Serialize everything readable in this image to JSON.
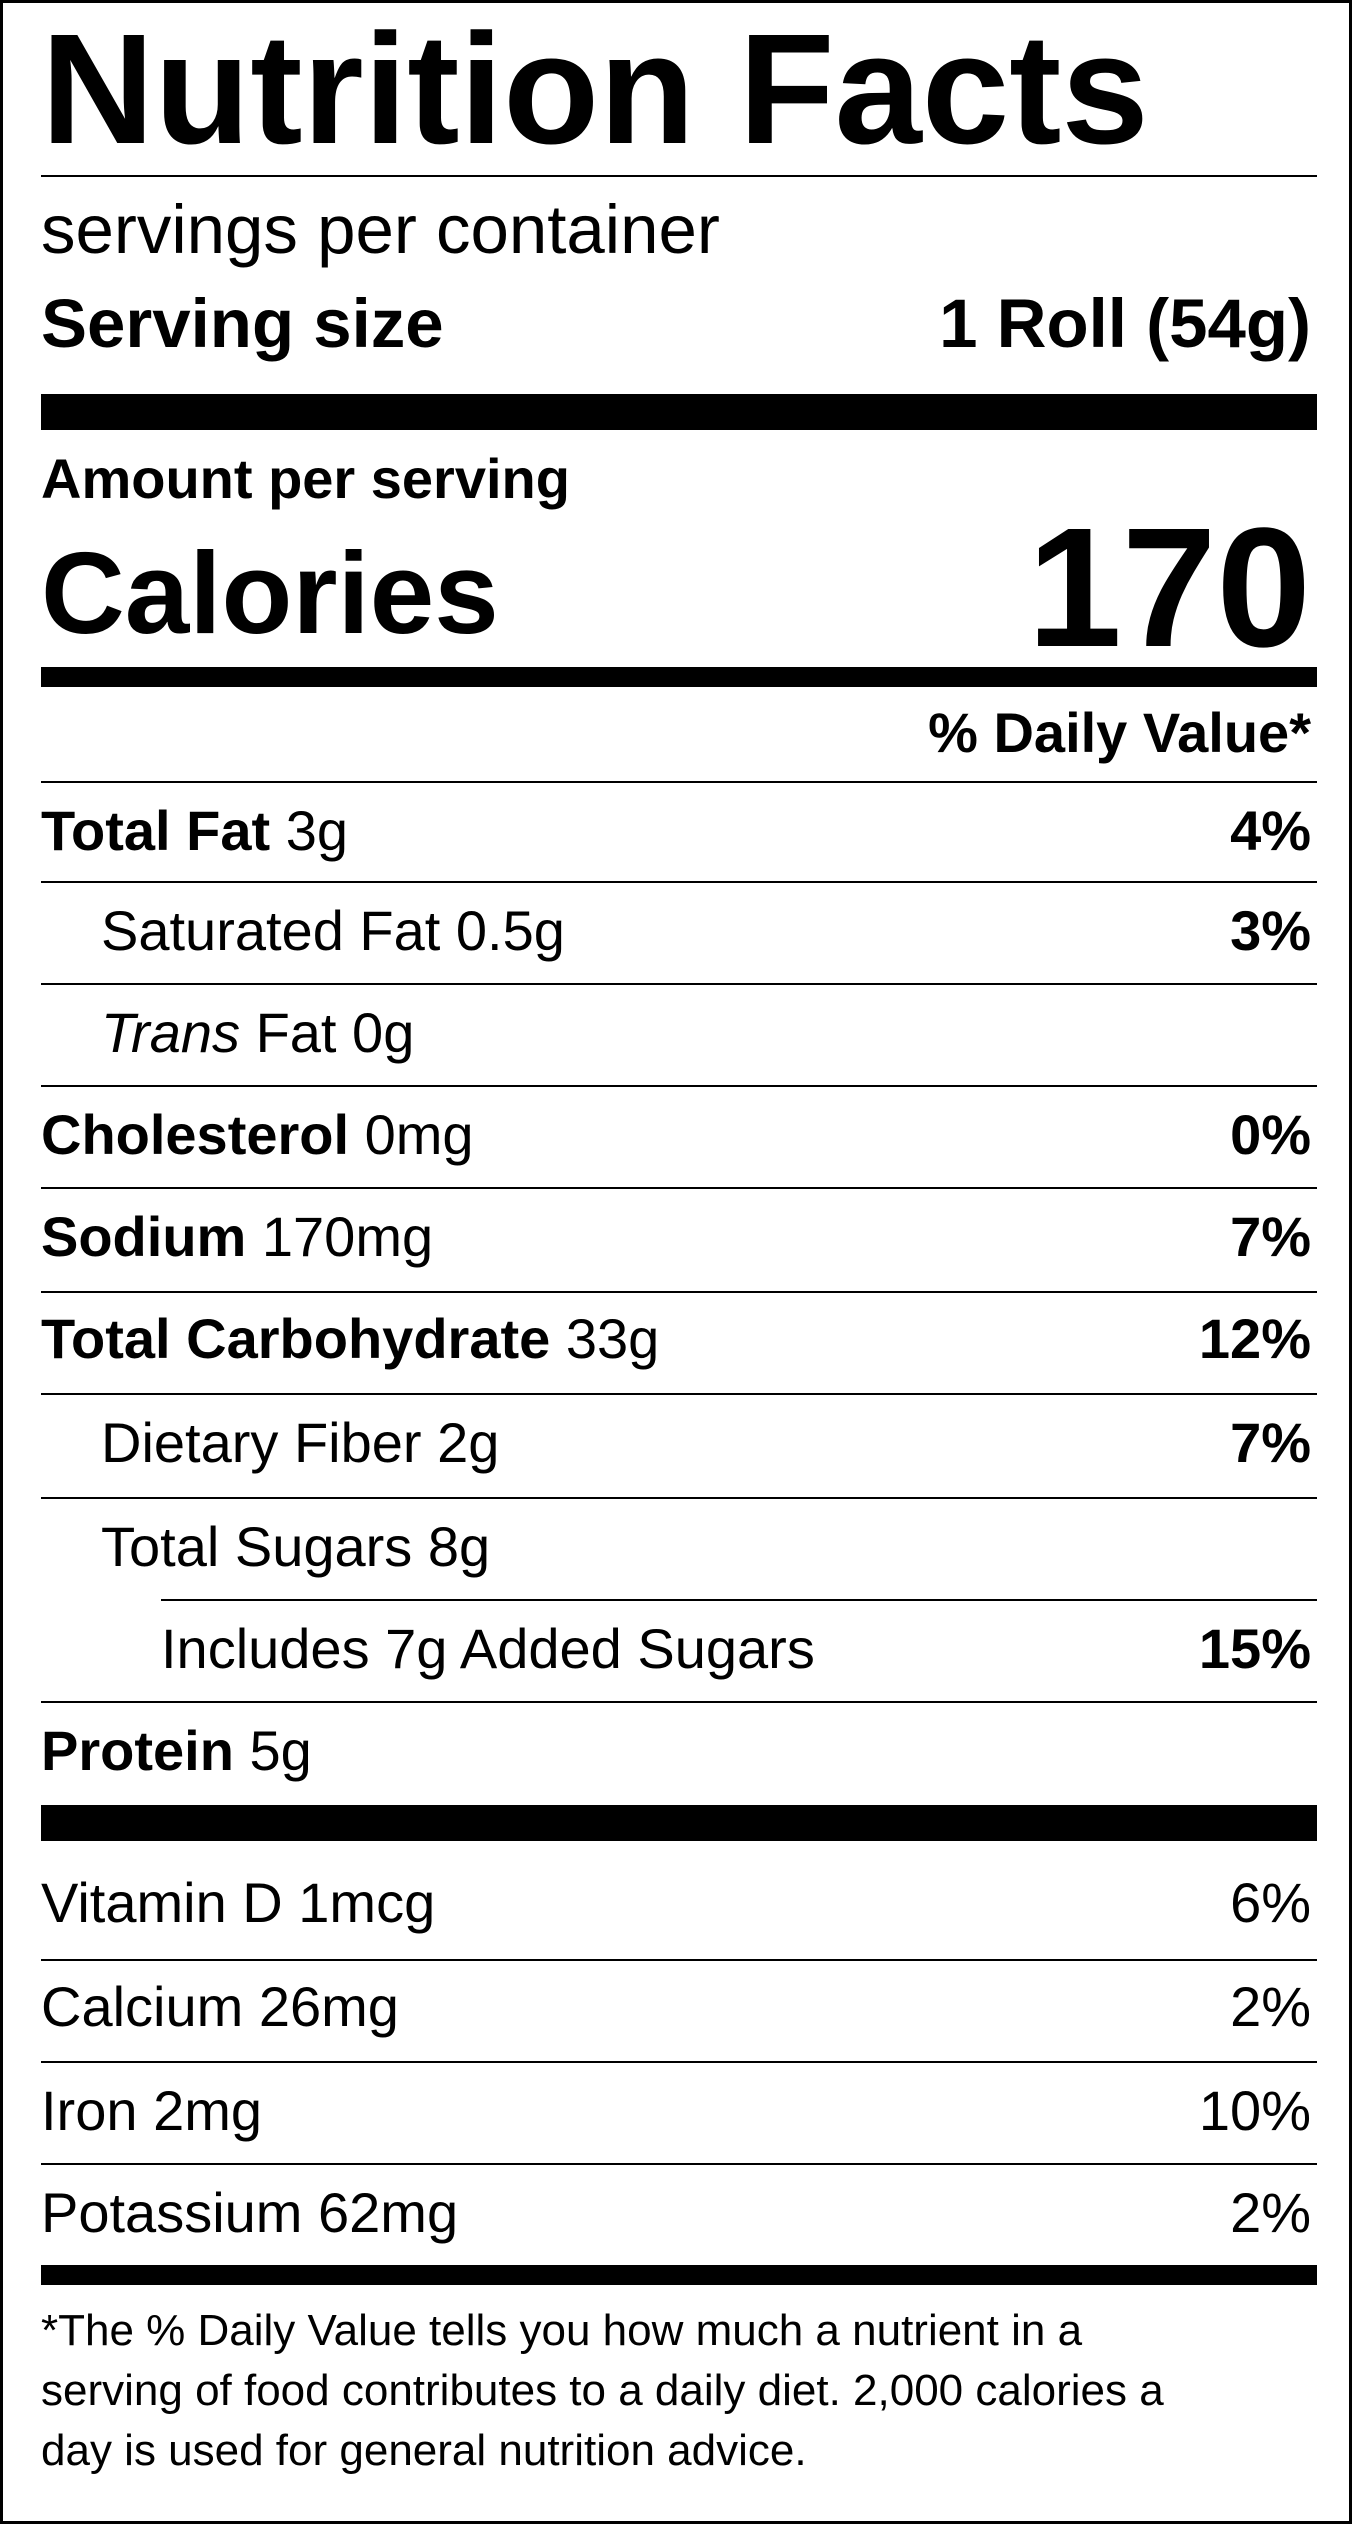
{
  "title": "Nutrition Facts",
  "servings_per_container": "servings per container",
  "serving_size": {
    "label": "Serving size",
    "value": "1 Roll (54g)"
  },
  "amount_per_serving": "Amount per serving",
  "calories": {
    "label": "Calories",
    "value": "170"
  },
  "daily_value_header": "% Daily Value*",
  "nutrients": [
    {
      "name": "Total Fat",
      "amount": "3g",
      "dv": "4%"
    },
    {
      "name": "Saturated Fat",
      "amount": "0.5g",
      "dv": "3%"
    },
    {
      "name": "Trans",
      "name_suffix": "Fat",
      "amount": "0g",
      "dv": ""
    },
    {
      "name": "Cholesterol",
      "amount": "0mg",
      "dv": "0%"
    },
    {
      "name": "Sodium",
      "amount": "170mg",
      "dv": "7%"
    },
    {
      "name": "Total Carbohydrate",
      "amount": "33g",
      "dv": "12%"
    },
    {
      "name": "Dietary Fiber",
      "amount": "2g",
      "dv": "7%"
    },
    {
      "name": "Total Sugars",
      "amount": "8g",
      "dv": ""
    },
    {
      "name": "Includes 7g Added Sugars",
      "amount": "",
      "dv": "15%"
    },
    {
      "name": "Protein",
      "amount": "5g",
      "dv": ""
    }
  ],
  "vitamins": [
    {
      "name": "Vitamin D",
      "amount": "1mcg",
      "dv": "6%"
    },
    {
      "name": "Calcium",
      "amount": "26mg",
      "dv": "2%"
    },
    {
      "name": "Iron",
      "amount": "2mg",
      "dv": "10%"
    },
    {
      "name": "Potassium",
      "amount": "62mg",
      "dv": "2%"
    }
  ],
  "footnote": {
    "line1": "*The % Daily Value tells you how much a nutrient in a",
    "line2": "serving of food contributes to a daily diet. 2,000 calories a",
    "line3": "day is used for general nutrition advice."
  }
}
